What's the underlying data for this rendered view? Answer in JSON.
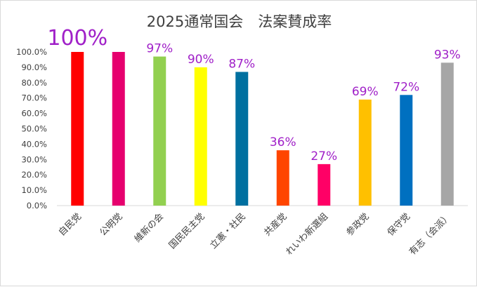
{
  "chart_data": {
    "type": "bar",
    "title": "2025通常国会　法案賛成率",
    "categories": [
      "自民党",
      "公明党",
      "維新の会",
      "国民民主党",
      "立憲・社民",
      "共産党",
      "れいわ新選組",
      "参政党",
      "保守党",
      "有志（会派）"
    ],
    "values": [
      100,
      100,
      97,
      90,
      87,
      36,
      27,
      69,
      72,
      93
    ],
    "data_labels": [
      "100%",
      "",
      "97%",
      "90%",
      "87%",
      "36%",
      "27%",
      "69%",
      "72%",
      "93%"
    ],
    "colors": [
      "#ff0000",
      "#e6006e",
      "#92d050",
      "#ffff00",
      "#0070a0",
      "#ff4500",
      "#ff0066",
      "#ffc000",
      "#0070c0",
      "#a6a6a6"
    ],
    "y_ticks": [
      "0.0%",
      "10.0%",
      "20.0%",
      "30.0%",
      "40.0%",
      "50.0%",
      "60.0%",
      "70.0%",
      "80.0%",
      "90.0%",
      "100.0%"
    ],
    "ylim": [
      0,
      100
    ],
    "xlabel": "",
    "ylabel": "",
    "grid": false,
    "legend": "none",
    "label_color": "#a020c8"
  }
}
